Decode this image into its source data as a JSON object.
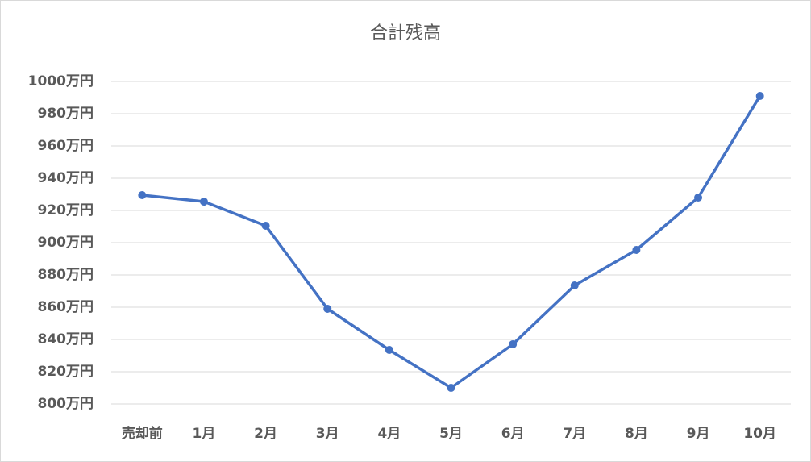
{
  "chart_data": {
    "type": "line",
    "title": "合計残高",
    "categories": [
      "売却前",
      "1月",
      "2月",
      "3月",
      "4月",
      "5月",
      "6月",
      "7月",
      "8月",
      "9月",
      "10月"
    ],
    "series": [
      {
        "name": "合計残高",
        "color": "#4472c4",
        "values": [
          929.5,
          925.5,
          910.5,
          859,
          833.5,
          810,
          837,
          873.5,
          895.5,
          928,
          991
        ]
      }
    ],
    "ylim": [
      800,
      1000
    ],
    "yticks": [
      {
        "value": 800,
        "label": "800万円"
      },
      {
        "value": 820,
        "label": "820万円"
      },
      {
        "value": 840,
        "label": "840万円"
      },
      {
        "value": 860,
        "label": "860万円"
      },
      {
        "value": 880,
        "label": "880万円"
      },
      {
        "value": 900,
        "label": "900万円"
      },
      {
        "value": 920,
        "label": "920万円"
      },
      {
        "value": 940,
        "label": "940万円"
      },
      {
        "value": 960,
        "label": "960万円"
      },
      {
        "value": 980,
        "label": "980万円"
      },
      {
        "value": 1000,
        "label": "1000万円"
      }
    ],
    "grid": true
  }
}
